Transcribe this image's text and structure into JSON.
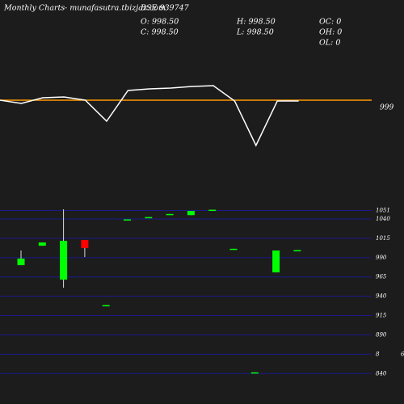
{
  "header": {
    "left": "Monthly Charts",
    "site": "- munafasutra.tbizjaz.com",
    "symbol": "BSE 939747",
    "o": "O: 998.50",
    "h": "H: 998.50",
    "oc": "OC: 0",
    "c": "C: 998.50",
    "l": "L: 998.50",
    "oh": "OH: 0",
    "ol": "OL: 0"
  },
  "chart_data": [
    {
      "type": "line",
      "categories": [
        null,
        null,
        null,
        null,
        null,
        null,
        null,
        null,
        null,
        null,
        null,
        null,
        null,
        null,
        null
      ],
      "values": [
        999,
        995,
        1002,
        1003,
        999,
        973,
        1011,
        1013,
        1014,
        1016,
        1017,
        998,
        943,
        998,
        998
      ],
      "color": "#ffffff",
      "ylim": [
        923,
        1097
      ],
      "hline": {
        "value": 999,
        "label": "999",
        "color": "#ff9900"
      }
    },
    {
      "type": "candlestick",
      "categories": [
        null,
        null,
        null,
        null,
        null,
        null,
        null,
        null,
        null,
        null,
        null,
        null,
        null,
        null
      ],
      "open": [
        980.3,
        1005.4,
        961.5,
        1012.8,
        927.5,
        1038.5,
        1041.5,
        1045.5,
        1045,
        1051,
        1000.5,
        840.5,
        970.9,
        998.7
      ],
      "high": [
        999.2,
        1009.6,
        1052.6,
        1012.8,
        928.5,
        1039.5,
        1042.5,
        1046.5,
        1050.5,
        1052,
        1001.5,
        841.5,
        999.2,
        999.7
      ],
      "low": [
        980.3,
        1005.4,
        951,
        990.8,
        927.5,
        1038.5,
        1041.5,
        1045.5,
        1045,
        1051,
        1000.5,
        840.5,
        970.9,
        998.7
      ],
      "close": [
        988.7,
        1009.6,
        1011.7,
        1002.3,
        928.5,
        1039.5,
        1042.5,
        1046.5,
        1050.5,
        1052,
        1001.5,
        841.5,
        999.2,
        999.7
      ],
      "up_color": "#00ff00",
      "down_color": "#ff0000",
      "grid": true,
      "grid_color": "#1a1a8c",
      "ylim": [
        811,
        1062
      ],
      "yticks": [
        1051,
        1040,
        1015,
        990,
        965,
        940,
        915,
        890,
        {
          "value": 865,
          "label": "8"
        },
        840
      ],
      "annotation": "6"
    }
  ]
}
